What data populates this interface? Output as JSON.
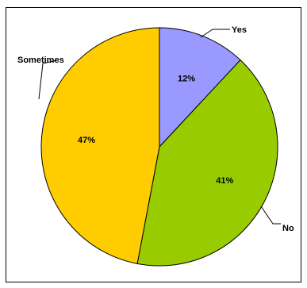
{
  "chart_data": {
    "type": "pie",
    "title": "",
    "slices": [
      {
        "label": "Yes",
        "value": 12,
        "value_label": "12%",
        "color": "#9999ff"
      },
      {
        "label": "No",
        "value": 41,
        "value_label": "41%",
        "color": "#99cc00"
      },
      {
        "label": "Sometimes",
        "value": 47,
        "value_label": "47%",
        "color": "#ffcc00"
      }
    ],
    "start_angle_deg": 0,
    "direction": "clockwise",
    "legend": "none"
  }
}
